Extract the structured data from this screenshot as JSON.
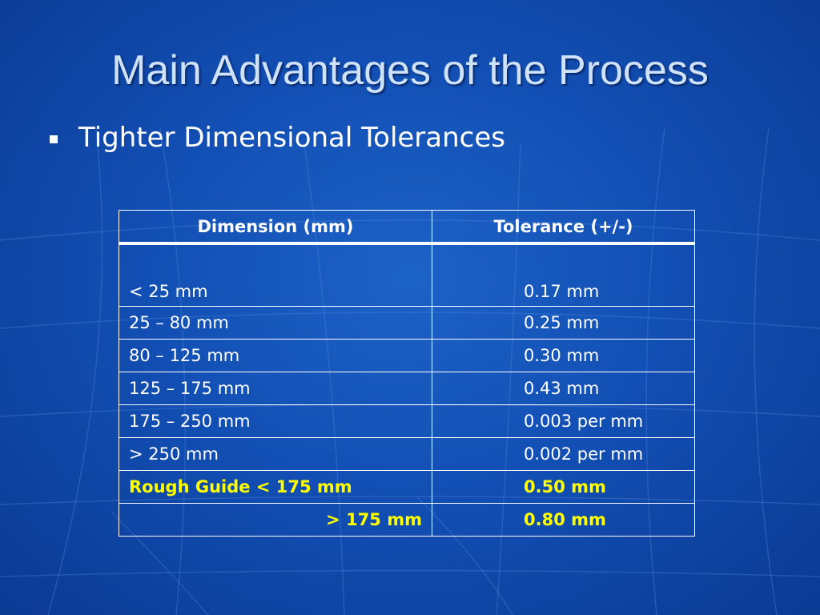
{
  "slide": {
    "title": "Main Advantages of the Process",
    "bullet": "Tighter Dimensional Tolerances"
  },
  "table": {
    "headers": [
      "Dimension (mm)",
      "Tolerance (+/-)"
    ],
    "rows": [
      {
        "dimension": "< 25 mm",
        "tolerance": "0.17 mm"
      },
      {
        "dimension": "25 – 80 mm",
        "tolerance": "0.25 mm"
      },
      {
        "dimension": "80 – 125 mm",
        "tolerance": "0.30 mm"
      },
      {
        "dimension": "125 – 175 mm",
        "tolerance": "0.43 mm"
      },
      {
        "dimension": "175 – 250 mm",
        "tolerance": "0.003 per mm"
      },
      {
        "dimension": "> 250 mm",
        "tolerance": "0.002 per mm"
      },
      {
        "dimension": "Rough Guide < 175 mm",
        "tolerance": "0.50 mm"
      },
      {
        "dimension": "> 175 mm",
        "tolerance": "0.80 mm"
      }
    ]
  },
  "colors": {
    "background": "#124fb4",
    "title": "#cfe2f7",
    "text": "#ffffff",
    "highlight": "#ffff00"
  }
}
